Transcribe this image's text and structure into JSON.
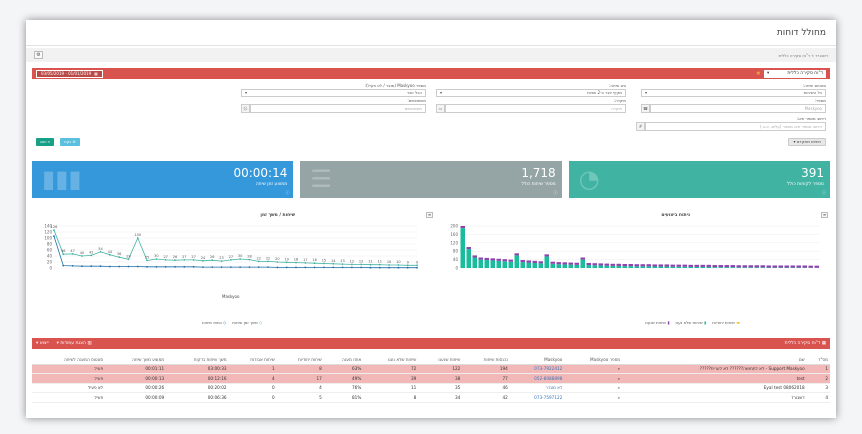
{
  "page": {
    "title": "מחולל דוחות"
  },
  "breadcrumb": {
    "home": "דשבורד",
    "sep": "»",
    "current": "ד\"וח סקירה כללית"
  },
  "report": {
    "selected": "ד\"וח סקירה כללית",
    "date_range": "01/01/2019 - 03/05/2019",
    "collapse_icon": "minus-icon"
  },
  "filters": {
    "call_status_label": "סטטוס שיחה:",
    "call_status_value": "כל השיחות",
    "call_type_label": "סוג שיחה:",
    "call_type_value": "מקיף יוצר ב-2 שניות",
    "mask_label": "מספר Maskyoo (מוצר / לא פעיל):",
    "mask_value": "הכל זוכר",
    "number_label": "מספר:",
    "number_placeholder": "Maskyoo",
    "extension_label": "תיקייה:",
    "extension_placeholder": "תיקייה",
    "destination_label": "משתמשים:",
    "destination_placeholder": "משתמשים",
    "dialed_label": "ריתוב מספר חיוג:",
    "dialed_placeholder": "ריתוב מספר חיוג מספר (עלים, א.ב.)",
    "run_button": "הצג",
    "clear_button": "נקה",
    "advanced_button": "חיפוש מתקדם"
  },
  "cards": [
    {
      "value": "391",
      "label": "מספר לקוחות כולל",
      "color": "#41b3a3"
    },
    {
      "value": "1,718",
      "label": "מספר שיחות כולל",
      "color": "#95a5a6"
    },
    {
      "value": "00:00:14",
      "label": "ממוצע זמן שיחה",
      "color": "#3498db"
    }
  ],
  "charts": {
    "left_title": "שיחות / משך זמן",
    "left_xlabel": "Maskyoo",
    "left_legend": [
      "משך זמן שיחות",
      "כמות שיחות"
    ],
    "right_title": "ניתוח ביצועים",
    "right_legend": [
      "שיחות יחודיות",
      "שיחות שלא נענו",
      "שיחות שנענו"
    ]
  },
  "chart_data": [
    {
      "type": "bar",
      "title": "ניתוח ביצועים",
      "ylim": [
        0,
        200
      ],
      "y_ticks": [
        0,
        40,
        80,
        120,
        160,
        200
      ],
      "series": [
        {
          "name": "שיחות שנענו",
          "values": [
            10,
            10,
            10,
            10,
            10,
            10,
            10,
            10,
            10,
            10,
            10,
            10,
            10,
            10,
            10,
            10,
            10,
            10,
            10,
            10,
            10,
            10,
            10,
            10,
            10,
            10,
            10,
            10,
            10,
            10,
            10,
            10,
            10,
            10,
            10,
            10,
            10,
            10,
            10,
            10,
            10,
            10,
            10,
            10,
            10,
            10,
            10,
            10,
            10,
            10,
            10,
            10,
            10,
            10,
            10,
            10,
            10,
            10,
            10,
            10
          ]
        },
        {
          "name": "שיחות שלא נענו",
          "values": [
            190,
            90,
            50,
            40,
            38,
            36,
            34,
            32,
            30,
            60,
            28,
            26,
            24,
            22,
            55,
            20,
            18,
            17,
            16,
            15,
            40,
            14,
            13,
            12,
            11,
            10,
            10,
            9,
            9,
            8,
            8,
            8,
            7,
            7,
            7,
            6,
            6,
            6,
            5,
            5,
            5,
            5,
            4,
            4,
            4,
            4,
            3,
            3,
            3,
            3,
            3,
            2,
            2,
            2,
            2,
            2,
            2,
            2,
            1,
            1
          ]
        },
        {
          "name": "שיחות יחודיות",
          "values": [
            0,
            0,
            0,
            0,
            0,
            0,
            0,
            0,
            0,
            0,
            0,
            0,
            0,
            0,
            0,
            0,
            0,
            0,
            0,
            0,
            0,
            0,
            0,
            0,
            0,
            0,
            0,
            0,
            0,
            0,
            0,
            0,
            0,
            0,
            0,
            0,
            0,
            0,
            0,
            0,
            0,
            0,
            0,
            0,
            0,
            0,
            0,
            0,
            0,
            0,
            0,
            0,
            0,
            0,
            0,
            0,
            0,
            0,
            0,
            0
          ]
        }
      ]
    },
    {
      "type": "line",
      "title": "שיחות / משך זמן",
      "xlabel": "Maskyoo",
      "ylim": [
        0,
        140
      ],
      "y_ticks": [
        0,
        20,
        40,
        60,
        80,
        100,
        120,
        140
      ],
      "series": [
        {
          "name": "משך זמן שיחות",
          "values": [
            126,
            46,
            47,
            40,
            42,
            54,
            44,
            36,
            29,
            100,
            25,
            30,
            27,
            26,
            27,
            27,
            24,
            26,
            23,
            27,
            30,
            28,
            22,
            22,
            20,
            19,
            18,
            17,
            16,
            15,
            14,
            13,
            12,
            12,
            11,
            11,
            10,
            10,
            9,
            9
          ]
        },
        {
          "name": "כמות שיחות",
          "values": [
            106,
            8,
            7,
            6,
            6,
            6,
            5,
            5,
            5,
            5,
            4,
            4,
            4,
            4,
            4,
            4,
            3,
            3,
            3,
            3,
            3,
            3,
            3,
            3,
            2,
            2,
            2,
            2,
            2,
            2,
            2,
            2,
            2,
            2,
            1,
            1,
            1,
            1,
            1,
            1
          ]
        }
      ]
    }
  ],
  "table": {
    "title": "ד\"וח סקירה כללית",
    "export_label": "ייצוא",
    "columns_label": "הצגת עמודות",
    "headers": [
      "מס\"ד",
      "שם",
      "מספר Maskyoo",
      "Maskyoo",
      "נכנסות שיחות",
      "שיחות שנענו",
      "שיחות שלא נענו",
      "אחוז מענה",
      "שיחות יחודיות",
      "שיחות אבודות",
      "משך שיחות בדקות",
      "ממוצע משך שיחה",
      "סטטוס המענה לשיחה"
    ],
    "rows": [
      {
        "n": "1",
        "name": "Support Maskyoo - לא לתחושה?????? לא לערית?????",
        "mask": "073-7922412",
        "in": "194",
        "ans": "122",
        "miss": "72",
        "pct": "63%",
        "uniq": "8",
        "lost": "1",
        "dur": "03:00:33",
        "avg": "00:01:11",
        "status": "פעיל",
        "pink": true
      },
      {
        "n": "2",
        "name": "test",
        "mask": "052-8088898",
        "in": "77",
        "ans": "38",
        "miss": "39",
        "pct": "49%",
        "uniq": "17",
        "lost": "4",
        "dur": "00:12:16",
        "avg": "00:00:13",
        "status": "פעיל",
        "pink": true
      },
      {
        "n": "3",
        "name": "Eyal test 08062018",
        "mask": "לא מוגדר",
        "in": "46",
        "ans": "35",
        "miss": "11",
        "pct": "76%",
        "uniq": "4",
        "lost": "0",
        "dur": "00:20:02",
        "avg": "00:00:26",
        "status": "לא פעיל",
        "pink": false
      },
      {
        "n": "4",
        "name": "דשבורד",
        "mask": "073-7597122",
        "in": "42",
        "ans": "34",
        "miss": "8",
        "pct": "81%",
        "uniq": "5",
        "lost": "0",
        "dur": "00:06:36",
        "avg": "00:00:09",
        "status": "פעיל",
        "pink": false
      }
    ]
  }
}
